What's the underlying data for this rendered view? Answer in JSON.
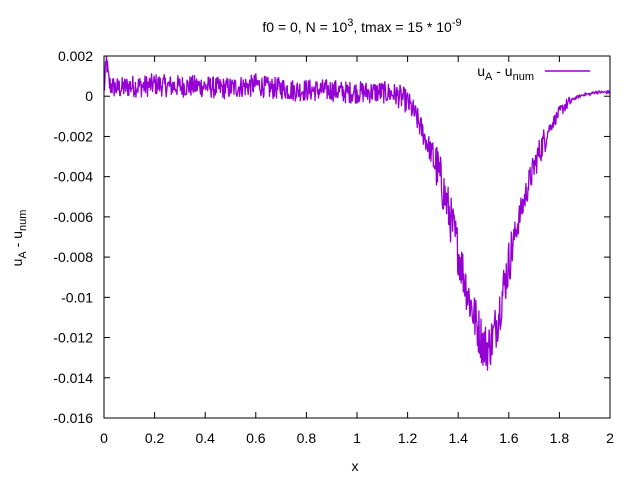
{
  "chart_data": {
    "type": "line",
    "title": {
      "prefix": "f0 = 0, N = 10",
      "n_exp": "3",
      "middle": ", tmax = 15 * 10",
      "t_exp": "-9"
    },
    "xlabel": "x",
    "ylabel": {
      "base": "u",
      "sub1": "A",
      "mid": " - u",
      "sub2": "num"
    },
    "xlim": [
      0,
      2
    ],
    "ylim": [
      -0.016,
      0.002
    ],
    "xticks": [
      0,
      0.2,
      0.4,
      0.6,
      0.8,
      1,
      1.2,
      1.4,
      1.6,
      1.8,
      2
    ],
    "xtick_labels": [
      "0",
      "0.2",
      "0.4",
      "0.6",
      "0.8",
      "1",
      "1.2",
      "1.4",
      "1.6",
      "1.8",
      "2"
    ],
    "yticks": [
      0.002,
      0,
      -0.002,
      -0.004,
      -0.006,
      -0.008,
      -0.01,
      -0.012,
      -0.014,
      -0.016
    ],
    "ytick_labels": [
      "0.002",
      "0",
      "-0.002",
      "-0.004",
      "-0.006",
      "-0.008",
      "-0.01",
      "-0.012",
      "-0.014",
      "-0.016"
    ],
    "grid": false,
    "legend_position": "top-right",
    "series": [
      {
        "name": {
          "base": "u",
          "sub1": "A",
          "mid": " - u",
          "sub2": "num"
        },
        "color": "#9400d3",
        "x": [
          0,
          0.01,
          0.02,
          0.03,
          0.05,
          0.07,
          0.1,
          0.13,
          0.16,
          0.2,
          0.25,
          0.3,
          0.35,
          0.4,
          0.45,
          0.5,
          0.55,
          0.58,
          0.6,
          0.65,
          0.7,
          0.75,
          0.8,
          0.85,
          0.9,
          0.95,
          1.0,
          1.05,
          1.1,
          1.15,
          1.18,
          1.2,
          1.22,
          1.24,
          1.26,
          1.28,
          1.3,
          1.32,
          1.34,
          1.36,
          1.38,
          1.4,
          1.42,
          1.44,
          1.46,
          1.48,
          1.5,
          1.52,
          1.54,
          1.56,
          1.58,
          1.6,
          1.62,
          1.64,
          1.66,
          1.68,
          1.7,
          1.72,
          1.74,
          1.76,
          1.78,
          1.8,
          1.82,
          1.84,
          1.86,
          1.88,
          1.9,
          1.92,
          1.94,
          1.96,
          1.98,
          2.0
        ],
        "y": [
          0.0002,
          0.0018,
          0.0006,
          0.0005,
          0.0004,
          0.0004,
          0.0005,
          0.0005,
          0.0005,
          0.0006,
          0.0005,
          0.0005,
          0.0005,
          0.0005,
          0.0004,
          0.0004,
          0.0005,
          0.0005,
          0.0006,
          0.0004,
          0.0004,
          0.0003,
          0.0003,
          0.0003,
          0.0003,
          0.0002,
          0.0002,
          0.0002,
          0.0002,
          0.0001,
          -0.0001,
          -0.0003,
          -0.0007,
          -0.0012,
          -0.0018,
          -0.0024,
          -0.003,
          -0.0037,
          -0.0046,
          -0.0056,
          -0.0066,
          -0.0077,
          -0.0088,
          -0.0099,
          -0.0108,
          -0.0116,
          -0.0124,
          -0.0125,
          -0.0119,
          -0.0108,
          -0.0095,
          -0.0083,
          -0.0071,
          -0.0061,
          -0.0052,
          -0.0043,
          -0.0035,
          -0.0028,
          -0.0022,
          -0.0016,
          -0.0012,
          -0.0008,
          -0.0005,
          -0.0003,
          -0.0001,
          0.0,
          0.0001,
          0.0001,
          0.0002,
          0.0002,
          0.0002,
          0.0002
        ]
      }
    ]
  }
}
